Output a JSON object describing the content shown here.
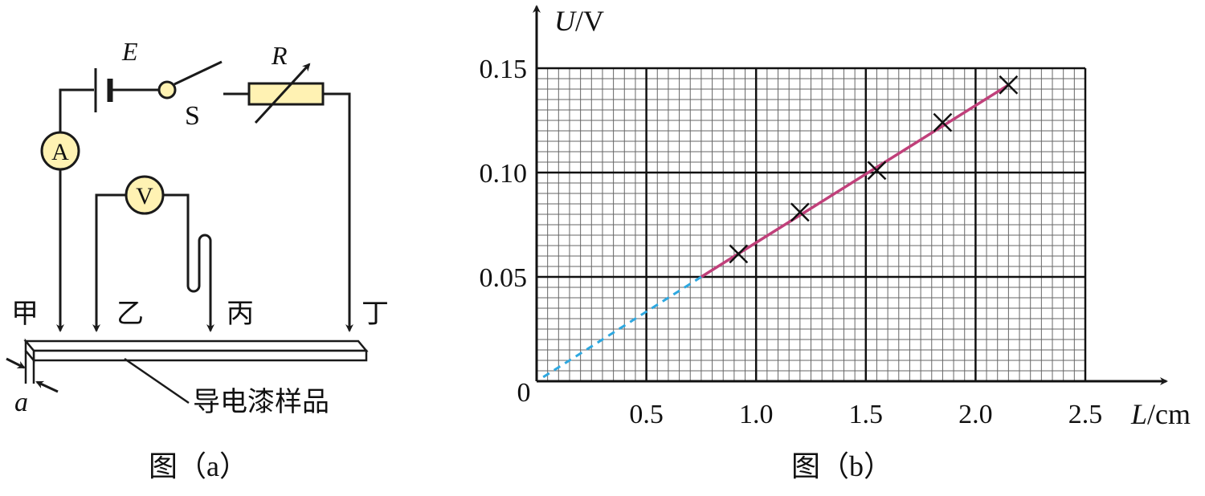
{
  "figure_a": {
    "caption": "图（a）",
    "battery_label": "E",
    "switch_label": "S",
    "rheostat_label": "R",
    "ammeter_label": "A",
    "voltmeter_label": "V",
    "probe_labels": [
      "甲",
      "乙",
      "丙",
      "丁"
    ],
    "thickness_label": "a",
    "sample_label": "导电漆样品",
    "colors": {
      "meter_fill": "#fff2b3",
      "rheostat_fill": "#fff2b3",
      "wire": "#1a1a1a"
    }
  },
  "figure_b": {
    "caption": "图（b）",
    "y_axis_label_var": "U",
    "y_axis_label_unit": "/V",
    "x_axis_label_var": "L",
    "x_axis_label_unit": "/cm",
    "origin_label": "0",
    "colors": {
      "fit_line": "#c0407a",
      "extrapolation": "#2ea8e0",
      "grid_major": "#111111",
      "grid_minor": "#666666"
    }
  },
  "chart_data": {
    "type": "scatter",
    "title": "",
    "xlabel": "L/cm",
    "ylabel": "U/V",
    "xlim": [
      0,
      2.5
    ],
    "ylim": [
      0,
      0.15
    ],
    "x_ticks": [
      "0.5",
      "1.0",
      "1.5",
      "2.0",
      "2.5"
    ],
    "y_ticks": [
      "0.05",
      "0.10",
      "0.15"
    ],
    "grid": true,
    "points": [
      {
        "x": 0.92,
        "y": 0.061
      },
      {
        "x": 1.2,
        "y": 0.081
      },
      {
        "x": 1.55,
        "y": 0.101
      },
      {
        "x": 1.85,
        "y": 0.124
      },
      {
        "x": 2.15,
        "y": 0.142
      }
    ],
    "fit_line": {
      "x": [
        0.75,
        2.15
      ],
      "y": [
        0.05,
        0.142
      ],
      "style": "solid"
    },
    "extrapolation": {
      "x": [
        0.03,
        0.75
      ],
      "y": [
        0.002,
        0.05
      ],
      "style": "dashed"
    }
  }
}
